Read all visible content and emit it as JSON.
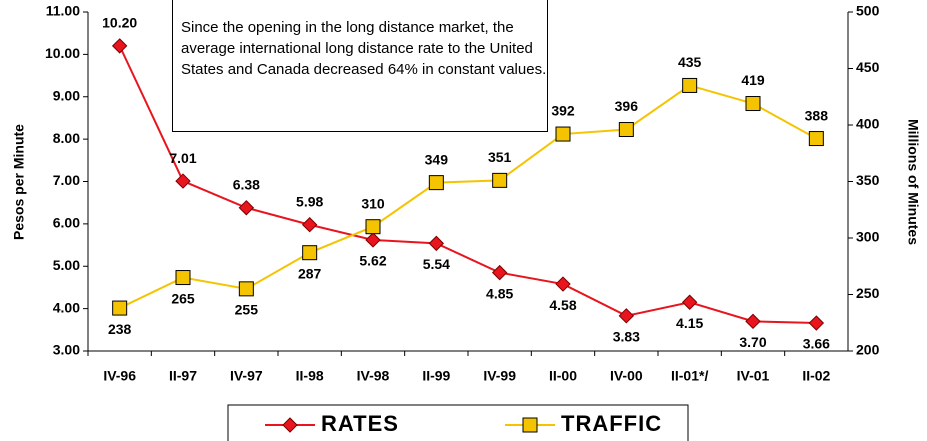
{
  "chart_data": {
    "type": "line",
    "annotation": "Since the opening in the long distance market, the average international long distance rate to the United States and Canada decreased 64% in constant values.",
    "ylabel": "Pesos per Minute",
    "y2label": "Millions of Minutes",
    "categories": [
      "IV-96",
      "II-97",
      "IV-97",
      "II-98",
      "IV-98",
      "II-99",
      "IV-99",
      "II-00",
      "IV-00",
      "II-01*/",
      "IV-01",
      "II-02"
    ],
    "series": [
      {
        "name": "RATES",
        "color": "#e8141e",
        "marker": "diamond",
        "values": [
          10.2,
          7.01,
          6.38,
          5.98,
          5.62,
          5.54,
          4.85,
          4.58,
          3.83,
          4.15,
          3.7,
          3.66
        ],
        "value_labels": [
          "10.20",
          "7.01",
          "6.38",
          "5.98",
          "5.62",
          "5.54",
          "4.85",
          "4.58",
          "3.83",
          "4.15",
          "3.70",
          "3.66"
        ]
      },
      {
        "name": "TRAFFIC",
        "color": "#f5c400",
        "marker": "square",
        "axis": "y2",
        "values": [
          238,
          265,
          255,
          287,
          310,
          349,
          351,
          392,
          396,
          435,
          419,
          388
        ]
      }
    ],
    "ylim": [
      3,
      11
    ],
    "yticks": [
      {
        "value": 3,
        "label": "3.00"
      },
      {
        "value": 4,
        "label": "4.00"
      },
      {
        "value": 5,
        "label": "5.00"
      },
      {
        "value": 6,
        "label": "6.00"
      },
      {
        "value": 7,
        "label": "7.00"
      },
      {
        "value": 8,
        "label": "8.00"
      },
      {
        "value": 9,
        "label": "9.00"
      },
      {
        "value": 10,
        "label": "10.00"
      },
      {
        "value": 11,
        "label": "11.00"
      }
    ],
    "y2lim": [
      200,
      500
    ],
    "y2ticks": [
      200,
      250,
      300,
      350,
      400,
      450,
      500
    ],
    "legend": "bottom"
  }
}
